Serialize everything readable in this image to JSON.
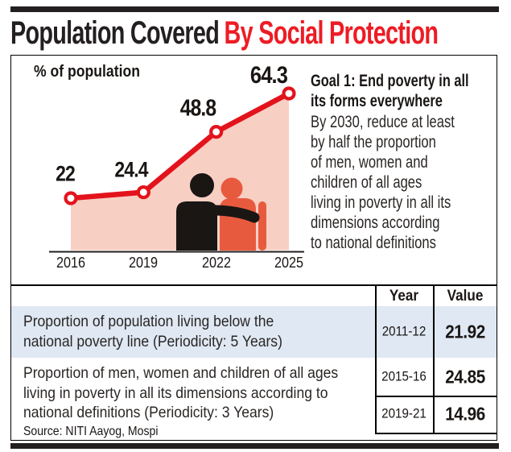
{
  "header": {
    "title_black": "Population Covered",
    "title_red": "By Social Protection"
  },
  "chart_data": {
    "type": "line",
    "unit_label": "% of population",
    "x": [
      "2016",
      "2019",
      "2022",
      "2025"
    ],
    "values": [
      22,
      24.4,
      48.8,
      64.3
    ],
    "value_labels": [
      "22",
      "24.4",
      "48.8",
      "64.3"
    ],
    "ylim": [
      0,
      70
    ],
    "grid": false,
    "legend": "none",
    "marker": "open-circle",
    "area": true
  },
  "goal": {
    "heading": "Goal 1: End poverty in all\nits forms everywhere",
    "body": "By 2030, reduce at least\nby half the proportion\nof men, women and\nchildren of all ages\nliving in poverty in all its\ndimensions according\nto national definitions"
  },
  "table": {
    "col_headers": [
      "Year",
      "Value"
    ],
    "rows": [
      {
        "desc": "Proportion of population living below the\nnational poverty line (Periodicity: 5 Years)",
        "entries": [
          {
            "year": "2011-12",
            "value": "21.92"
          }
        ],
        "highlight": true
      },
      {
        "desc": "Proportion of men, women and children of all ages\nliving in poverty in all its dimensions according to\nnational definitions (Periodicity: 3 Years)",
        "entries": [
          {
            "year": "2015-16",
            "value": "24.85"
          },
          {
            "year": "2019-21",
            "value": "14.96"
          }
        ],
        "highlight": false
      }
    ]
  },
  "source": "Source: NITI Aayog, Mospi",
  "colors": {
    "accent_red": "#e3131c",
    "title_red": "#ed1c24",
    "area_fill": "#f8cfc3",
    "person_orange": "#e85a3e",
    "row_highlight": "#dfe8f3",
    "ink": "#231f20"
  }
}
